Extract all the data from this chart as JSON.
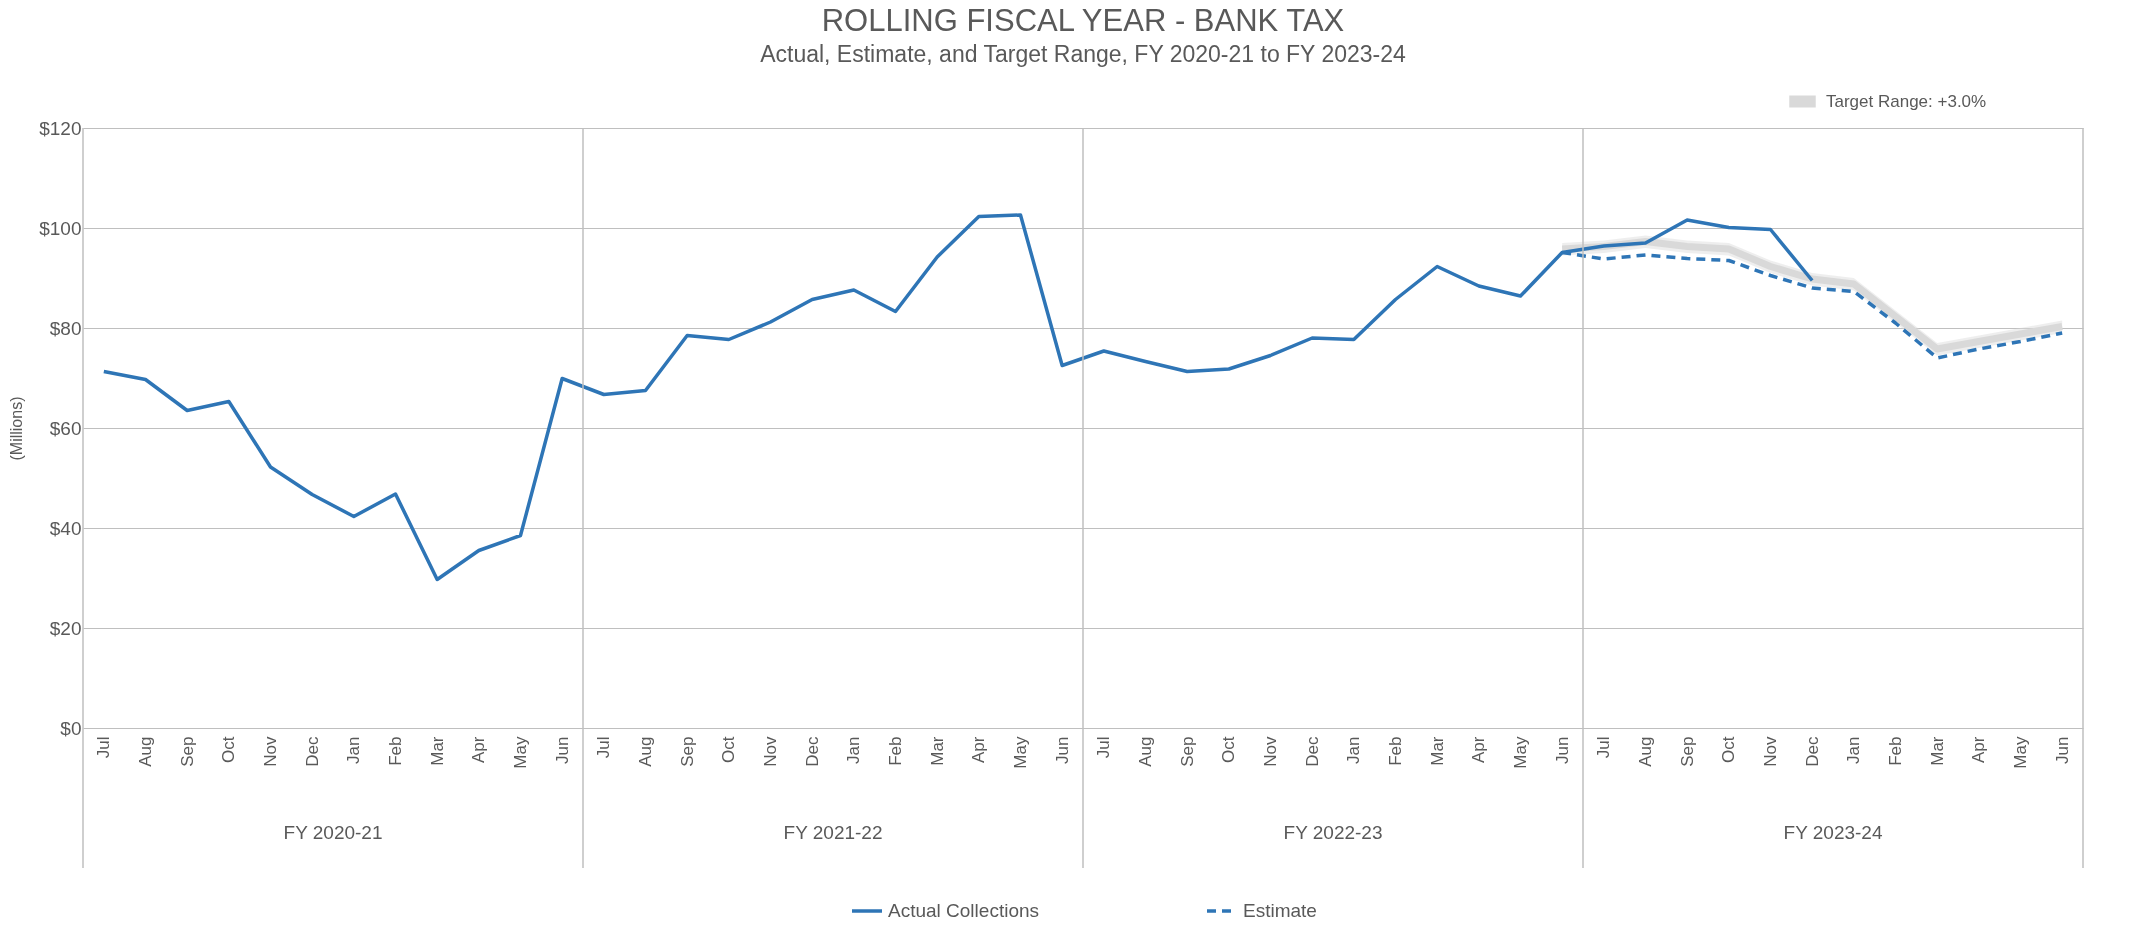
{
  "chart_data": {
    "type": "line",
    "title": "ROLLING FISCAL YEAR - BANK TAX",
    "subtitle": "Actual, Estimate, and Target Range, FY 2020-21 to FY 2023-24",
    "ylabel": "(Millions)",
    "categories": [
      "Jul",
      "Aug",
      "Sep",
      "Oct",
      "Nov",
      "Dec",
      "Jan",
      "Feb",
      "Mar",
      "Apr",
      "May",
      "Jun",
      "Jul",
      "Aug",
      "Sep",
      "Oct",
      "Nov",
      "Dec",
      "Jan",
      "Feb",
      "Mar",
      "Apr",
      "May",
      "Jun",
      "Jul",
      "Aug",
      "Sep",
      "Oct",
      "Nov",
      "Dec",
      "Jan",
      "Feb",
      "Mar",
      "Apr",
      "May",
      "Jun",
      "Jul",
      "Aug",
      "Sep",
      "Oct",
      "Nov",
      "Dec",
      "Jan",
      "Feb",
      "Mar",
      "Apr",
      "May",
      "Jun"
    ],
    "annotations": [
      "FY 2020-21",
      "FY 2021-22",
      "FY 2022-23",
      "FY 2023-24"
    ],
    "series": [
      {
        "name": "Target Range: +3.0%",
        "color": "#d9d9d9",
        "values": [
          null,
          null,
          null,
          null,
          null,
          null,
          null,
          null,
          null,
          null,
          null,
          null,
          null,
          null,
          null,
          null,
          null,
          null,
          null,
          null,
          null,
          null,
          null,
          null,
          null,
          null,
          null,
          null,
          null,
          null,
          null,
          null,
          null,
          null,
          null,
          95.8,
          96.3,
          97.3,
          96.3,
          95.8,
          92.3,
          89.8,
          88.8,
          82.3,
          75.8,
          77.3,
          78.8,
          80.3
        ],
        "lower": [
          null,
          null,
          null,
          null,
          null,
          null,
          null,
          null,
          null,
          null,
          null,
          null,
          null,
          null,
          null,
          null,
          null,
          null,
          null,
          null,
          null,
          null,
          null,
          null,
          null,
          null,
          null,
          null,
          null,
          null,
          null,
          null,
          null,
          null,
          null,
          94.5,
          95,
          96,
          95,
          94.5,
          91,
          88.5,
          87.5,
          81,
          74.5,
          76,
          77.5,
          79
        ],
        "upper": [
          null,
          null,
          null,
          null,
          null,
          null,
          null,
          null,
          null,
          null,
          null,
          null,
          null,
          null,
          null,
          null,
          null,
          null,
          null,
          null,
          null,
          null,
          null,
          null,
          null,
          null,
          null,
          null,
          null,
          null,
          null,
          null,
          null,
          null,
          null,
          97,
          97.5,
          98.5,
          97.5,
          97,
          93.5,
          91,
          90,
          83.5,
          77,
          78.5,
          80,
          81.5
        ]
      },
      {
        "name": "Actual Collections",
        "color": "#2e75b6",
        "line_style": "solid",
        "values": [
          71.3,
          69.7,
          63.5,
          65.3,
          52.2,
          46.7,
          42.3,
          46.8,
          29.7,
          35.5,
          38.5,
          69.9,
          66.7,
          67.5,
          78.5,
          77.7,
          81.2,
          85.7,
          87.6,
          83.3,
          94.2,
          102.3,
          102.6,
          72.5,
          75.4,
          73.3,
          71.3,
          71.8,
          74.5,
          78.0,
          77.7,
          85.7,
          92.3,
          88.4,
          86.4,
          95.1,
          96.4,
          97.0,
          101.6,
          100.1,
          99.7,
          89.5,
          null,
          null,
          null,
          null,
          null,
          null
        ]
      },
      {
        "name": "Estimate",
        "color": "#2e75b6",
        "line_style": "dashed",
        "values": [
          null,
          null,
          null,
          null,
          null,
          null,
          null,
          null,
          null,
          null,
          null,
          null,
          null,
          null,
          null,
          null,
          null,
          null,
          null,
          null,
          null,
          null,
          null,
          null,
          null,
          null,
          null,
          null,
          null,
          null,
          null,
          null,
          null,
          null,
          null,
          95.1,
          93.8,
          94.6,
          93.9,
          93.5,
          90.5,
          88.0,
          87.3,
          81.0,
          74.0,
          75.8,
          77.3,
          79.0
        ]
      }
    ],
    "ylim": [
      0,
      120
    ],
    "yticks": [
      {
        "value": 0,
        "label": "$0"
      },
      {
        "value": 20,
        "label": "$20"
      },
      {
        "value": 40,
        "label": "$40"
      },
      {
        "value": 60,
        "label": "$60"
      },
      {
        "value": 80,
        "label": "$80"
      },
      {
        "value": 100,
        "label": "$100"
      },
      {
        "value": 120,
        "label": "$120"
      }
    ],
    "grid": "y",
    "legend": "bottom"
  }
}
